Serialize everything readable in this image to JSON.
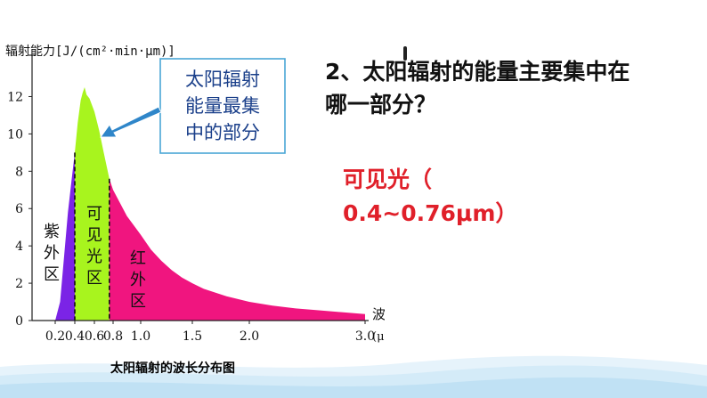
{
  "question": {
    "line1": "2、太阳辐射的能量主要集中在",
    "line2": "哪一部分？"
  },
  "answer": {
    "line1": "可见光（",
    "line2": "0.4~0.76μm）"
  },
  "caption": "太阳辐射的波长分布图",
  "callout": {
    "line1": "太阳辐射",
    "line2": "能量最集",
    "line3": "中的部分",
    "border_color": "#4aa6d6",
    "arrow_color": "#2f86c9"
  },
  "chart_data": {
    "type": "area",
    "ylabel": "辐射能力[J/(cm²·min·μm)]",
    "xlabel": "波长",
    "x_unit": "(μm)",
    "x_ticks": [
      "0.2",
      "0.4",
      "0.6",
      "0.8",
      "1.0",
      "1.5",
      "2.0",
      "3.0"
    ],
    "y_ticks": [
      "0",
      "2",
      "4",
      "6",
      "8",
      "10",
      "12"
    ],
    "xlim": [
      0.15,
      3.0
    ],
    "ylim": [
      0,
      12.5
    ],
    "regions": [
      {
        "name": "紫外区",
        "label_chars": [
          "紫",
          "外",
          "区"
        ],
        "range": [
          0.2,
          0.4
        ],
        "color": "#7b24e6"
      },
      {
        "name": "可见光区",
        "label_chars": [
          "可",
          "见",
          "光",
          "区"
        ],
        "range": [
          0.4,
          0.76
        ],
        "color": "#a8f41e"
      },
      {
        "name": "红外区",
        "label_chars": [
          "红",
          "外",
          "区"
        ],
        "range": [
          0.76,
          3.0
        ],
        "color": "#f0157f"
      }
    ],
    "series": [
      {
        "x": [
          0.2,
          0.25,
          0.3,
          0.33,
          0.36,
          0.4,
          0.43,
          0.46,
          0.48,
          0.5,
          0.52,
          0.55,
          0.6,
          0.65,
          0.7,
          0.76,
          0.8,
          0.9,
          1.0,
          1.1,
          1.2,
          1.3,
          1.4,
          1.5,
          1.6,
          1.8,
          2.0,
          2.2,
          2.4,
          2.6,
          2.8,
          3.0
        ],
        "y": [
          0.0,
          1.0,
          4.0,
          5.8,
          7.2,
          9.0,
          10.6,
          11.8,
          12.2,
          12.5,
          12.1,
          11.9,
          11.2,
          10.2,
          9.0,
          7.6,
          7.0,
          5.6,
          4.6,
          3.8,
          3.2,
          2.7,
          2.3,
          2.0,
          1.7,
          1.3,
          1.0,
          0.8,
          0.65,
          0.55,
          0.45,
          0.35
        ]
      }
    ],
    "grid": false
  }
}
